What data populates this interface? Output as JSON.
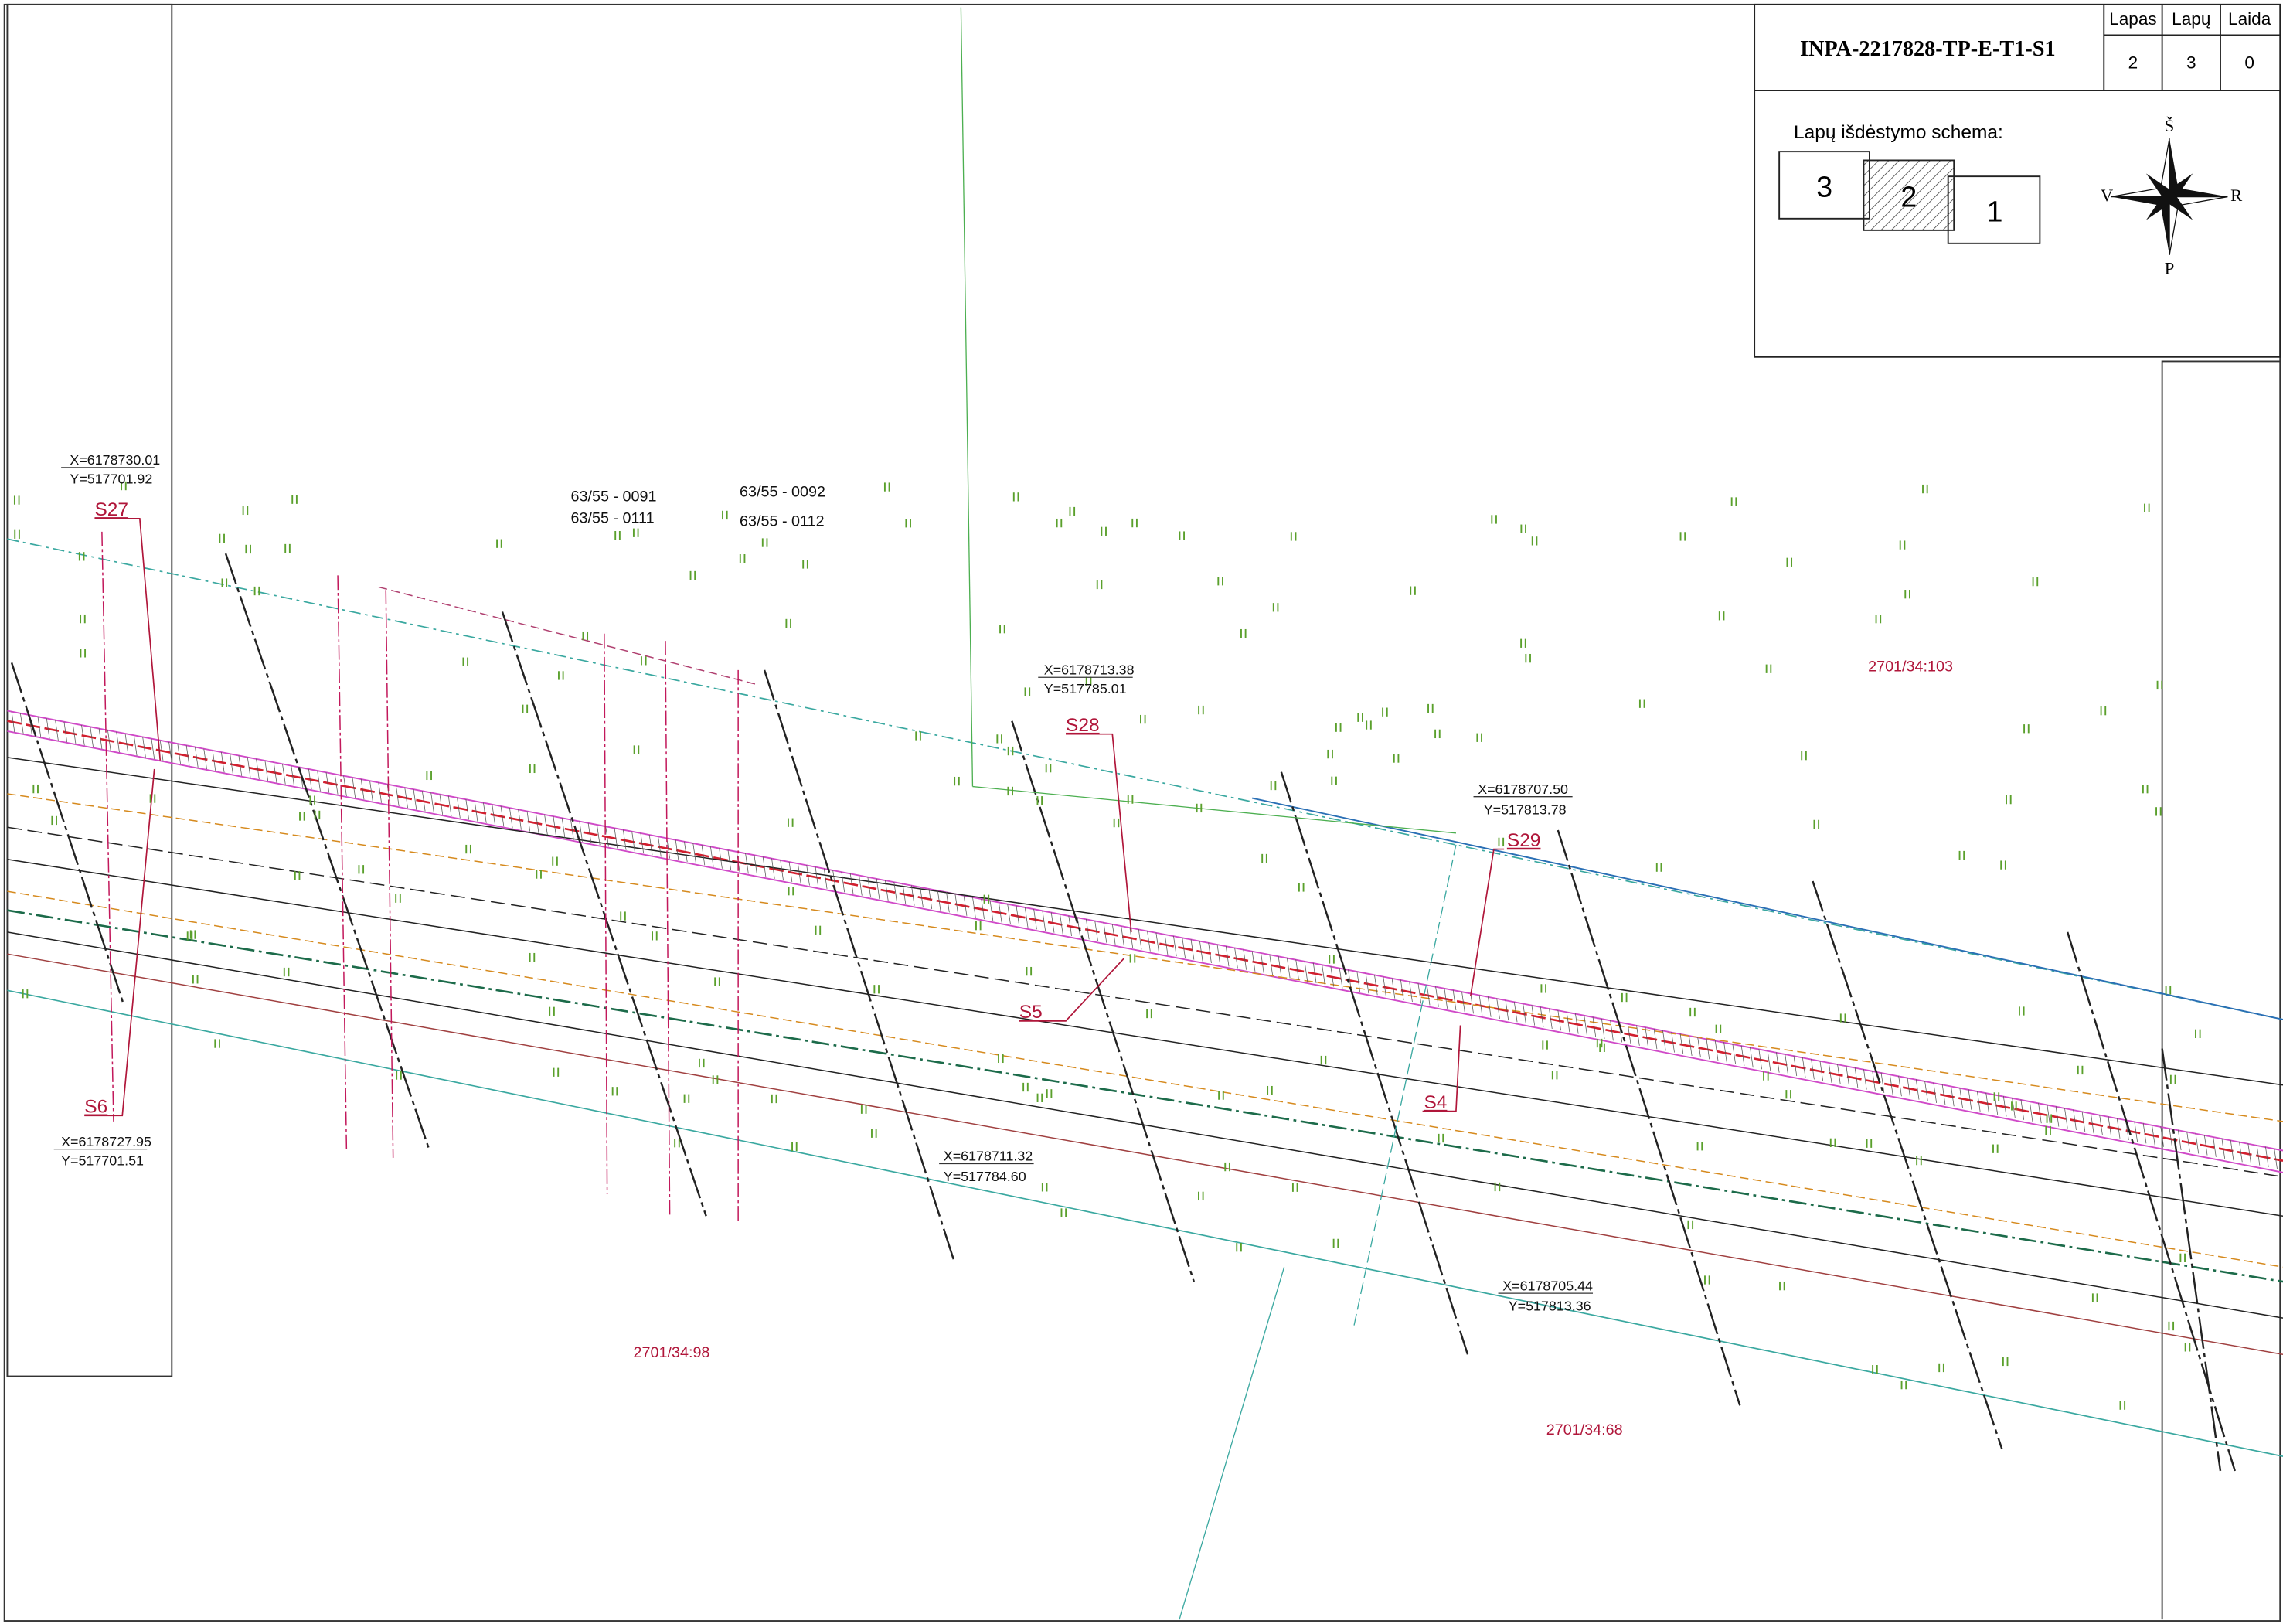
{
  "title_block": {
    "drawing_number": "INPA-2217828-TP-E-T1-S1",
    "columns": [
      {
        "header": "Lapas",
        "value": "2"
      },
      {
        "header": "Lapų",
        "value": "3"
      },
      {
        "header": "Laida",
        "value": "0"
      }
    ]
  },
  "layout_scheme": {
    "label": "Lapų išdėstymo schema:",
    "sheets": [
      "3",
      "2",
      "1"
    ]
  },
  "compass": {
    "north": "Š",
    "west": "V",
    "east": "R",
    "south": "P"
  },
  "coordinates": [
    {
      "x": "X=6178730.01",
      "y": "Y=517701.92"
    },
    {
      "x": "X=6178713.38",
      "y": "Y=517785.01"
    },
    {
      "x": "X=6178707.50",
      "y": "Y=517813.78"
    },
    {
      "x": "X=6178727.95",
      "y": "Y=517701.51"
    },
    {
      "x": "X=6178711.32",
      "y": "Y=517784.60"
    },
    {
      "x": "X=6178705.44",
      "y": "Y=517813.36"
    }
  ],
  "points": [
    "S27",
    "S28",
    "S29",
    "S5",
    "S4",
    "S6"
  ],
  "cadastral_labels": [
    "63/55 - 0091",
    "63/55 - 0111",
    "63/55 - 0092",
    "63/55 - 0112"
  ],
  "parcels": [
    "2701/34:103",
    "2701/34:98",
    "2701/34:68"
  ]
}
